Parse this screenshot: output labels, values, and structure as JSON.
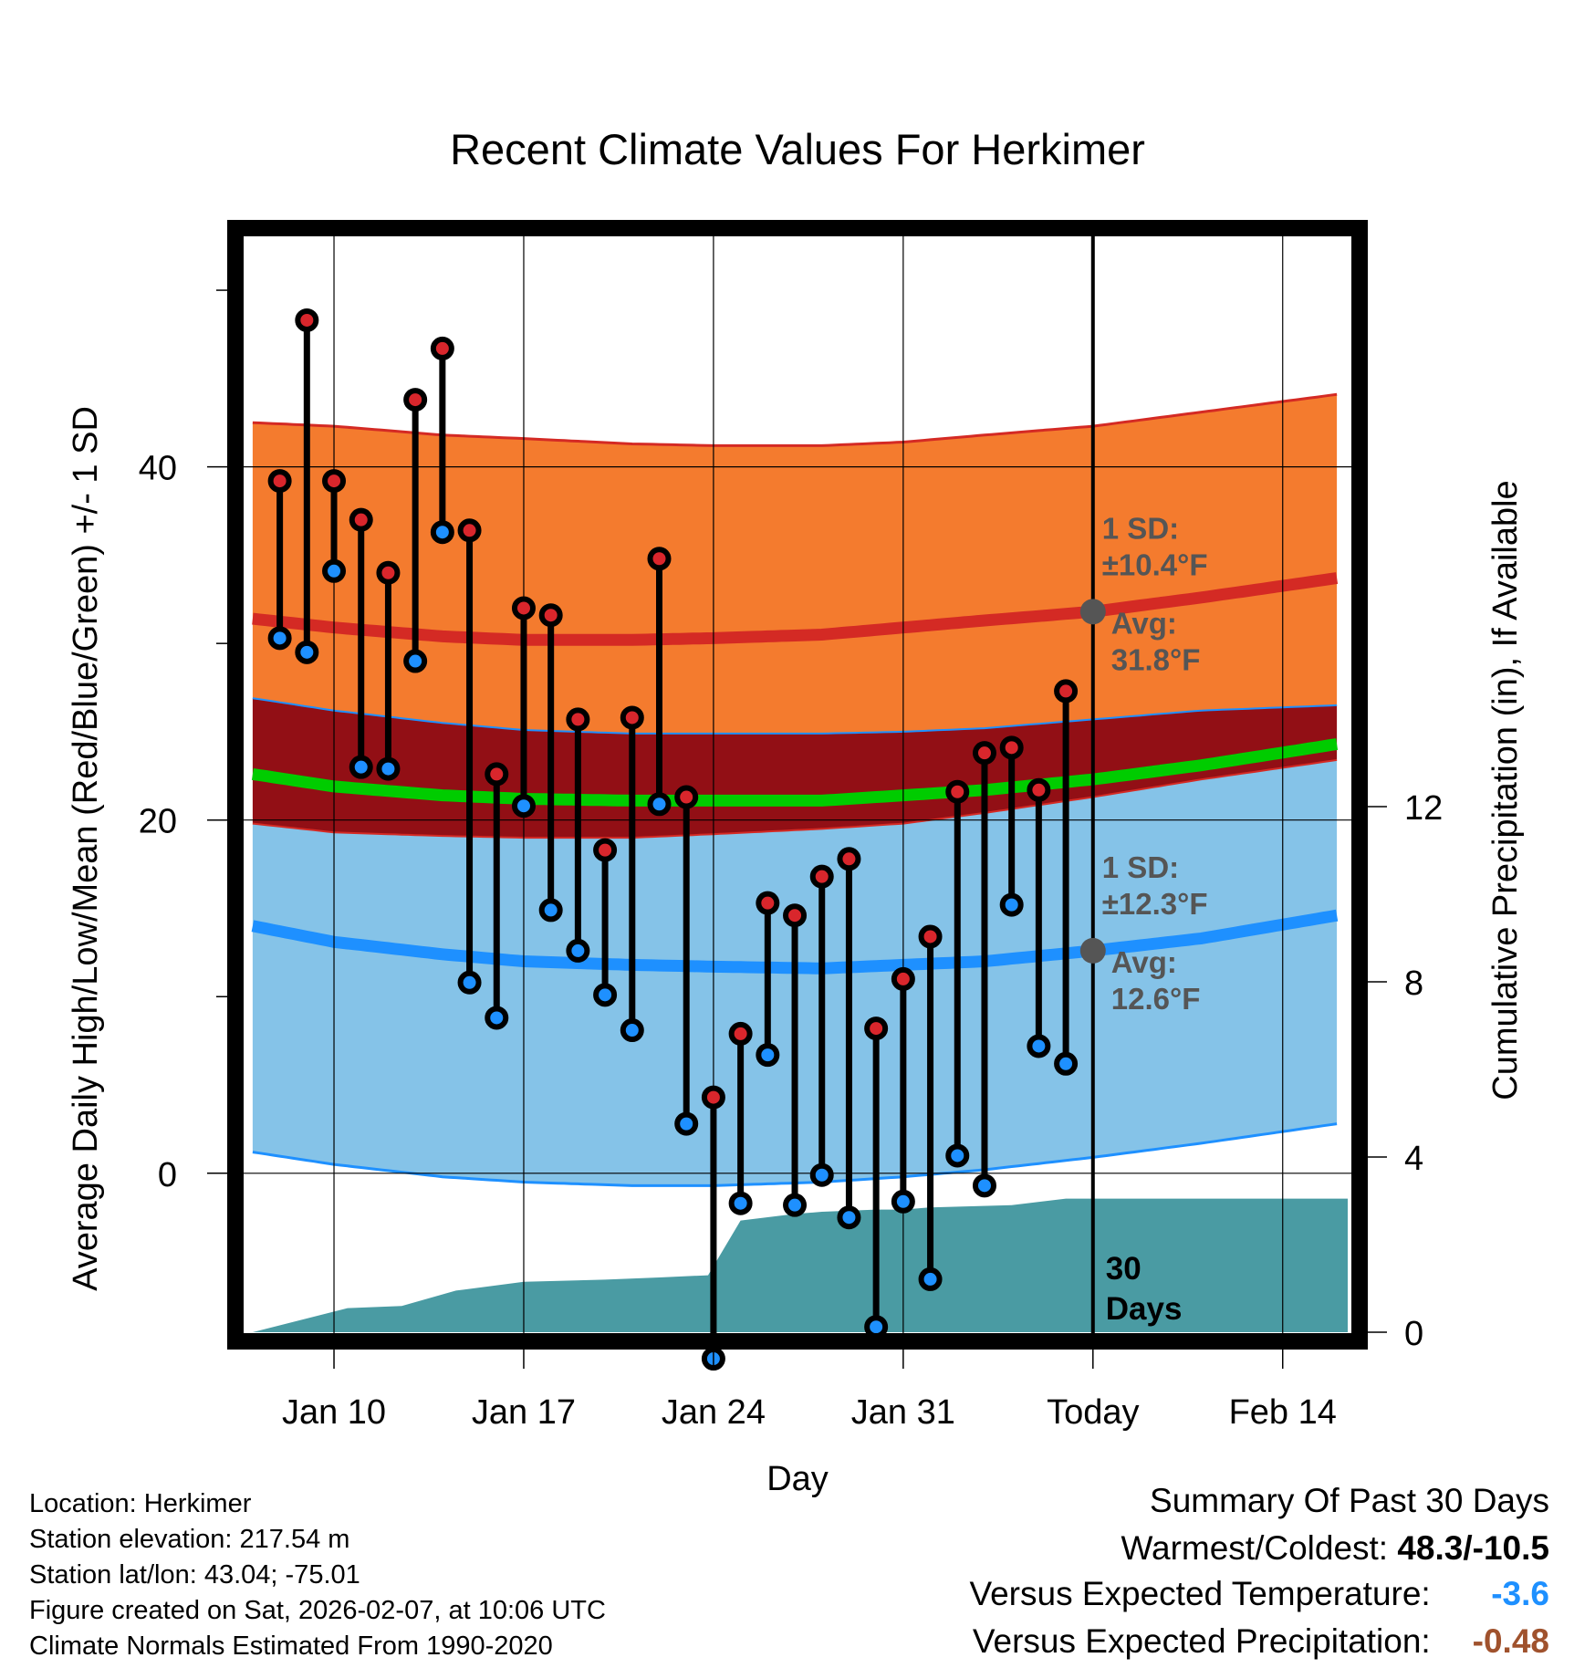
{
  "chart_data": {
    "type": "line",
    "title": "Recent Climate Values For Herkimer",
    "xlabel": "Day",
    "ylabel": "Average Daily High/Low/Mean (Red/Blue/Green) +/- 1 SD",
    "y2label": "Cumulative Precipitation (in), If Available",
    "x_tick_labels": [
      "Jan 10",
      "Jan 17",
      "Jan 24",
      "Jan 31",
      "Today",
      "Feb 14"
    ],
    "x_tick_days": [
      10,
      17,
      24,
      31,
      38,
      45
    ],
    "xlim": [
      6.7,
      47.5
    ],
    "ylim": [
      -9,
      53
    ],
    "y_ticks": [
      0,
      20,
      40
    ],
    "y2lim": [
      0,
      25
    ],
    "y2_ticks": [
      0,
      4,
      8,
      12
    ],
    "colors": {
      "high_band": "#f47b2e",
      "high_edge": "#d42a24",
      "mid_band": "#920f15",
      "mean_line": "#00cc00",
      "low_band": "#85c3e8",
      "low_edge": "#1e90ff",
      "precip": "#4a9ba3",
      "marker_high": "#d9262c",
      "marker_low": "#1e90ff",
      "sd_text": "#555555",
      "avg_marker": "#555555"
    },
    "normals": {
      "x": [
        7,
        10,
        14,
        17,
        21,
        24,
        28,
        31,
        34,
        38,
        42,
        47
      ],
      "high_upper": [
        42.5,
        42.3,
        41.8,
        41.6,
        41.3,
        41.2,
        41.2,
        41.4,
        41.8,
        42.3,
        43.1,
        44.1
      ],
      "high_avg": [
        31.4,
        30.9,
        30.4,
        30.2,
        30.2,
        30.3,
        30.5,
        30.9,
        31.3,
        31.8,
        32.6,
        33.7
      ],
      "high_lower": [
        26.9,
        26.2,
        25.5,
        25.1,
        24.9,
        24.9,
        24.9,
        25.0,
        25.2,
        25.7,
        26.2,
        26.5
      ],
      "mean": [
        22.6,
        21.9,
        21.4,
        21.2,
        21.1,
        21.1,
        21.1,
        21.4,
        21.7,
        22.3,
        23.1,
        24.3
      ],
      "low_upper": [
        19.8,
        19.3,
        19.1,
        19.0,
        19.0,
        19.2,
        19.5,
        19.8,
        20.4,
        21.3,
        22.3,
        23.4
      ],
      "low_avg": [
        14.0,
        13.1,
        12.4,
        12.0,
        11.8,
        11.7,
        11.6,
        11.8,
        12.0,
        12.6,
        13.3,
        14.6
      ],
      "low_lower": [
        1.2,
        0.5,
        -0.2,
        -0.5,
        -0.7,
        -0.7,
        -0.5,
        -0.2,
        0.2,
        0.9,
        1.7,
        2.8
      ]
    },
    "days": [
      8,
      9,
      10,
      11,
      12,
      13,
      14,
      15,
      16,
      17,
      18,
      19,
      20,
      21,
      22,
      23,
      24,
      25,
      26,
      27,
      28,
      29,
      30,
      31,
      32,
      33,
      34,
      35,
      36,
      37
    ],
    "highs": [
      39.2,
      48.3,
      39.2,
      37.0,
      34.0,
      43.8,
      46.7,
      36.4,
      22.6,
      32.0,
      31.6,
      25.7,
      18.3,
      25.8,
      34.8,
      21.3,
      4.3,
      7.9,
      15.3,
      14.6,
      16.8,
      17.8,
      8.2,
      11.0,
      13.4,
      21.6,
      23.8,
      24.1,
      21.7,
      27.3
    ],
    "lows": [
      30.3,
      29.5,
      34.1,
      23.0,
      22.9,
      29.0,
      36.3,
      10.8,
      8.8,
      20.8,
      14.9,
      12.6,
      10.1,
      8.1,
      20.9,
      2.8,
      -10.5,
      -1.7,
      6.7,
      -1.8,
      -0.1,
      -2.5,
      -8.7,
      -1.6,
      -6.0,
      1.0,
      -0.7,
      15.2,
      7.2,
      6.2
    ],
    "precip": {
      "x": [
        7,
        10.5,
        12.5,
        14.5,
        17,
        20,
        22,
        23.8,
        25,
        27,
        28,
        30,
        31,
        32,
        35,
        37,
        47.4
      ],
      "values": [
        0,
        0.55,
        0.6,
        0.95,
        1.15,
        1.2,
        1.25,
        1.3,
        2.55,
        2.7,
        2.75,
        2.8,
        2.8,
        2.85,
        2.9,
        3.05,
        3.05
      ]
    },
    "today_day": 38,
    "high_sd_label": "1 SD:",
    "high_sd_value": "±10.4°F",
    "high_avg_label": "Avg:",
    "high_avg_value": "31.8°F",
    "low_sd_label": "1 SD:",
    "low_sd_value": "±12.3°F",
    "low_avg_label": "Avg:",
    "low_avg_value": "12.6°F",
    "window_label": [
      "30",
      "Days"
    ]
  },
  "station_info": {
    "location": "Location: Herkimer",
    "elevation": "Station elevation: 217.54 m",
    "latlon": "Station lat/lon: 43.04; -75.01",
    "created": "Figure created on Sat, 2026-02-07, at 10:06 UTC",
    "normals": "Climate Normals Estimated From 1990-2020"
  },
  "summary": {
    "title": "Summary Of Past 30 Days",
    "warm_cold_label": "Warmest/Coldest:",
    "warm_cold_value": "48.3/-10.5",
    "temp_label": "Versus Expected Temperature:",
    "temp_value": "-3.6",
    "temp_color": "#1e90ff",
    "precip_label": "Versus Expected Precipitation:",
    "precip_value": "-0.48",
    "precip_color": "#a0522d"
  }
}
